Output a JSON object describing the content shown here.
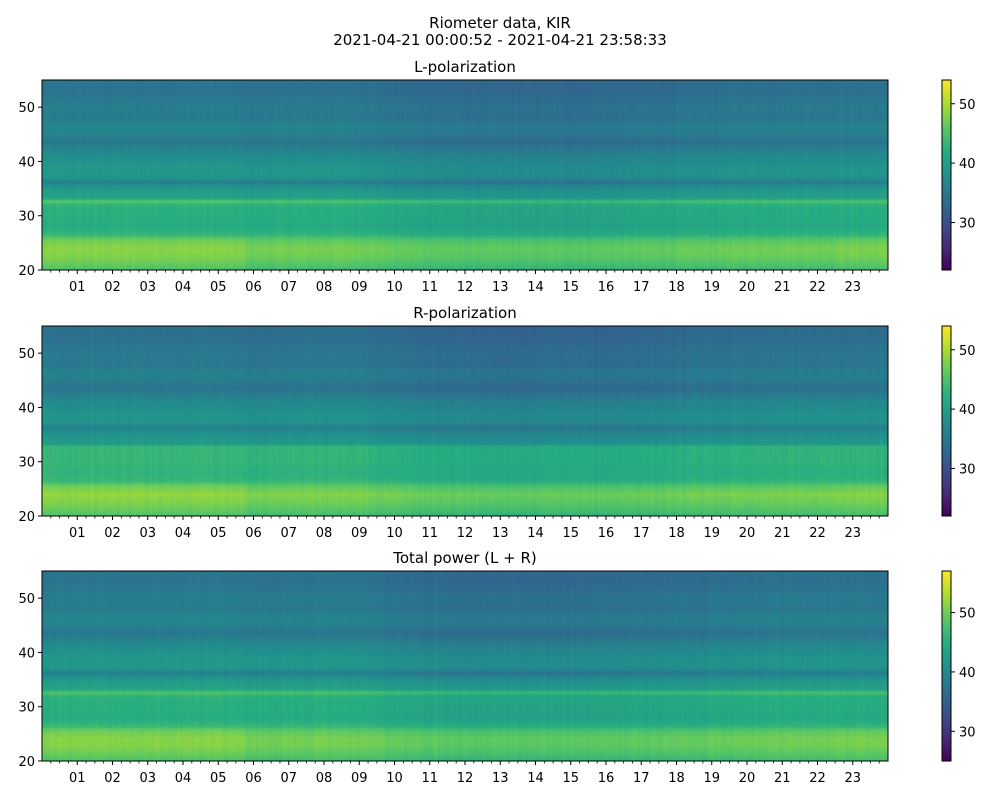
{
  "figure": {
    "title_line1": "Riometer data, KIR",
    "title_line2": "2021-04-21 00:00:52 - 2021-04-21 23:58:33"
  },
  "chart_data": [
    {
      "type": "heatmap",
      "title": "L-polarization",
      "x_axis": {
        "range_hours": [
          0,
          24
        ],
        "tick_labels": [
          "01",
          "02",
          "03",
          "04",
          "05",
          "06",
          "07",
          "08",
          "09",
          "10",
          "11",
          "12",
          "13",
          "14",
          "15",
          "16",
          "17",
          "18",
          "19",
          "20",
          "21",
          "22",
          "23"
        ]
      },
      "y_axis": {
        "range": [
          20,
          55
        ],
        "tick_labels": [
          "20",
          "30",
          "40",
          "50"
        ]
      },
      "colorbar": {
        "colormap": "viridis",
        "range": [
          22,
          54
        ],
        "tick_labels": [
          "30",
          "40",
          "50"
        ]
      },
      "profile": [
        {
          "y": 20,
          "v": 44
        },
        {
          "y": 21,
          "v": 45.5
        },
        {
          "y": 22.5,
          "v": 47
        },
        {
          "y": 24,
          "v": 47.5
        },
        {
          "y": 25.5,
          "v": 46
        },
        {
          "y": 26.5,
          "v": 43
        },
        {
          "y": 28,
          "v": 41.5
        },
        {
          "y": 29.5,
          "v": 42
        },
        {
          "y": 31,
          "v": 42
        },
        {
          "y": 32,
          "v": 42.5
        },
        {
          "y": 32.6,
          "v": 45.5
        },
        {
          "y": 33.2,
          "v": 40.5
        },
        {
          "y": 34.5,
          "v": 39.5
        },
        {
          "y": 35.5,
          "v": 38
        },
        {
          "y": 36.2,
          "v": 35.5
        },
        {
          "y": 37,
          "v": 38.5
        },
        {
          "y": 38.5,
          "v": 39
        },
        {
          "y": 40,
          "v": 38
        },
        {
          "y": 41,
          "v": 37.5
        },
        {
          "y": 42.5,
          "v": 36
        },
        {
          "y": 43.5,
          "v": 34.5
        },
        {
          "y": 45,
          "v": 36
        },
        {
          "y": 46.5,
          "v": 36.5
        },
        {
          "y": 48,
          "v": 35
        },
        {
          "y": 50,
          "v": 35.5
        },
        {
          "y": 52,
          "v": 34.5
        },
        {
          "y": 53.5,
          "v": 34
        },
        {
          "y": 55,
          "v": 34.5
        }
      ],
      "hourly_offset": [
        0.3,
        0.3,
        0.3,
        0.3,
        0.3,
        0.3,
        -0.2,
        0,
        0,
        0,
        -0.8,
        -1.1,
        -1.3,
        -1.4,
        -1.4,
        -1.4,
        -1.3,
        -1.1,
        -0.9,
        -0.6,
        -0.3,
        -0.2,
        -0.2,
        -0.2
      ]
    },
    {
      "type": "heatmap",
      "title": "R-polarization",
      "x_axis": {
        "range_hours": [
          0,
          24
        ],
        "tick_labels": [
          "01",
          "02",
          "03",
          "04",
          "05",
          "06",
          "07",
          "08",
          "09",
          "10",
          "11",
          "12",
          "13",
          "14",
          "15",
          "16",
          "17",
          "18",
          "19",
          "20",
          "21",
          "22",
          "23"
        ]
      },
      "y_axis": {
        "range": [
          20,
          55
        ],
        "tick_labels": [
          "20",
          "30",
          "40",
          "50"
        ]
      },
      "colorbar": {
        "colormap": "viridis",
        "range": [
          22,
          54
        ],
        "tick_labels": [
          "30",
          "40",
          "50"
        ]
      },
      "profile": [
        {
          "y": 20,
          "v": 44
        },
        {
          "y": 21,
          "v": 45.5
        },
        {
          "y": 22.5,
          "v": 47
        },
        {
          "y": 24,
          "v": 48
        },
        {
          "y": 25.5,
          "v": 46
        },
        {
          "y": 26.5,
          "v": 43
        },
        {
          "y": 28,
          "v": 42.5
        },
        {
          "y": 30,
          "v": 43
        },
        {
          "y": 32,
          "v": 43
        },
        {
          "y": 32.8,
          "v": 43
        },
        {
          "y": 33.2,
          "v": 39.5
        },
        {
          "y": 34.5,
          "v": 38.5
        },
        {
          "y": 35.5,
          "v": 37.5
        },
        {
          "y": 36.2,
          "v": 35.5
        },
        {
          "y": 37,
          "v": 38
        },
        {
          "y": 38.5,
          "v": 38.5
        },
        {
          "y": 40,
          "v": 37.5
        },
        {
          "y": 41,
          "v": 37
        },
        {
          "y": 42.5,
          "v": 35.5
        },
        {
          "y": 43.5,
          "v": 34
        },
        {
          "y": 45,
          "v": 35.5
        },
        {
          "y": 46.5,
          "v": 36
        },
        {
          "y": 48,
          "v": 34.5
        },
        {
          "y": 50,
          "v": 35
        },
        {
          "y": 52,
          "v": 34
        },
        {
          "y": 53.5,
          "v": 33.5
        },
        {
          "y": 55,
          "v": 34
        }
      ],
      "hourly_offset": [
        0.3,
        0.3,
        0.3,
        0.3,
        0.3,
        0.3,
        -0.2,
        0,
        0,
        0,
        -0.8,
        -1.1,
        -1.3,
        -1.4,
        -1.4,
        -1.4,
        -1.3,
        -1.1,
        -0.9,
        -0.6,
        -0.3,
        -0.2,
        -0.2,
        -0.2
      ]
    },
    {
      "type": "heatmap",
      "title": "Total power (L + R)",
      "x_axis": {
        "range_hours": [
          0,
          24
        ],
        "tick_labels": [
          "01",
          "02",
          "03",
          "04",
          "05",
          "06",
          "07",
          "08",
          "09",
          "10",
          "11",
          "12",
          "13",
          "14",
          "15",
          "16",
          "17",
          "18",
          "19",
          "20",
          "21",
          "22",
          "23"
        ]
      },
      "y_axis": {
        "range": [
          20,
          55
        ],
        "tick_labels": [
          "20",
          "30",
          "40",
          "50"
        ]
      },
      "colorbar": {
        "colormap": "viridis",
        "range": [
          25,
          57
        ],
        "tick_labels": [
          "30",
          "40",
          "50"
        ]
      },
      "profile": [
        {
          "y": 20,
          "v": 47
        },
        {
          "y": 21,
          "v": 48.5
        },
        {
          "y": 22.5,
          "v": 50
        },
        {
          "y": 24,
          "v": 50.5
        },
        {
          "y": 25.5,
          "v": 49
        },
        {
          "y": 26.5,
          "v": 46
        },
        {
          "y": 28,
          "v": 44.5
        },
        {
          "y": 29.5,
          "v": 45
        },
        {
          "y": 31,
          "v": 45
        },
        {
          "y": 32,
          "v": 45.5
        },
        {
          "y": 32.6,
          "v": 48
        },
        {
          "y": 33.2,
          "v": 43.5
        },
        {
          "y": 34.5,
          "v": 42.5
        },
        {
          "y": 35.5,
          "v": 41
        },
        {
          "y": 36.2,
          "v": 38.5
        },
        {
          "y": 37,
          "v": 41.5
        },
        {
          "y": 38.5,
          "v": 42
        },
        {
          "y": 40,
          "v": 41
        },
        {
          "y": 41,
          "v": 40.5
        },
        {
          "y": 42.5,
          "v": 39
        },
        {
          "y": 43.5,
          "v": 37.5
        },
        {
          "y": 45,
          "v": 39
        },
        {
          "y": 46.5,
          "v": 39.5
        },
        {
          "y": 48,
          "v": 38
        },
        {
          "y": 50,
          "v": 38.5
        },
        {
          "y": 52,
          "v": 37.5
        },
        {
          "y": 53.5,
          "v": 37
        },
        {
          "y": 55,
          "v": 37.5
        }
      ],
      "hourly_offset": [
        0.3,
        0.3,
        0.3,
        0.3,
        0.3,
        0.3,
        -0.2,
        0,
        0,
        0,
        -0.8,
        -1.1,
        -1.3,
        -1.4,
        -1.4,
        -1.4,
        -1.3,
        -1.1,
        -0.9,
        -0.6,
        -0.3,
        -0.2,
        -0.2,
        -0.2
      ]
    }
  ]
}
